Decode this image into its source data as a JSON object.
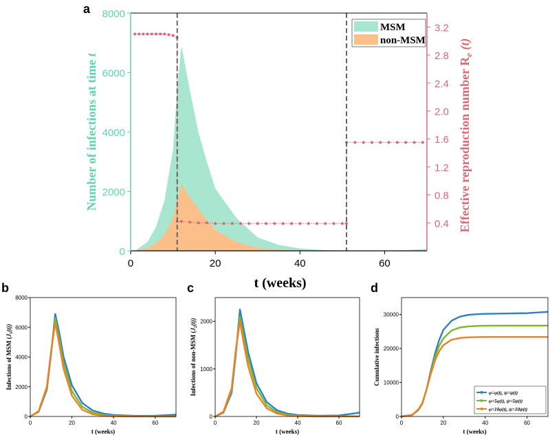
{
  "colors": {
    "msm": "#a8e6cf",
    "non_msm": "#fbc08a",
    "left_axis": "#5ed3b0",
    "right_axis": "#d96a78",
    "re_line": "#d9667a",
    "vline": "#666666",
    "blue": "#2f7ec4",
    "green": "#7ab82f",
    "orange": "#f07f22"
  },
  "chart_data": [
    {
      "panel": "a",
      "type": "area",
      "xlabel": "t (weeks)",
      "ylabel": "Number of infections at time t",
      "ylabel_italic": "t",
      "y2label": "Effective reproduction number R",
      "y2label_sub": "e",
      "y2label_suffix": "(t)",
      "xlim": [
        0,
        70
      ],
      "ylim": [
        0,
        8000
      ],
      "y2lim": [
        0,
        3.4
      ],
      "xticks": [
        0,
        20,
        40,
        60
      ],
      "yticks": [
        0,
        2000,
        4000,
        6000,
        8000
      ],
      "y2ticks": [
        0.4,
        0.8,
        1.2,
        1.6,
        2.0,
        2.4,
        2.8,
        3.2
      ],
      "vlines": [
        11,
        51
      ],
      "legend": [
        {
          "name": "MSM"
        },
        {
          "name": "non-MSM"
        }
      ],
      "series": [
        {
          "name": "MSM",
          "x": [
            1,
            4,
            6,
            8,
            10,
            11,
            12,
            14,
            16,
            18,
            20,
            25,
            30,
            35,
            40,
            45,
            50,
            55,
            60,
            65,
            70
          ],
          "values": [
            0,
            300,
            800,
            1700,
            3400,
            5400,
            6900,
            5400,
            4000,
            3000,
            2100,
            1100,
            450,
            200,
            80,
            30,
            10,
            5,
            5,
            20,
            60
          ]
        },
        {
          "name": "non-MSM",
          "x": [
            1,
            4,
            6,
            8,
            10,
            11,
            12,
            14,
            16,
            18,
            20,
            25,
            30,
            35,
            40,
            45,
            50,
            55,
            60,
            65,
            70
          ],
          "values": [
            0,
            100,
            250,
            550,
            1100,
            1700,
            2250,
            1800,
            1400,
            1050,
            700,
            300,
            100,
            40,
            15,
            5,
            2,
            1,
            1,
            5,
            15
          ]
        },
        {
          "name": "Re(t)",
          "x": [
            1,
            2,
            3,
            4,
            5,
            6,
            7,
            8,
            9,
            10,
            11,
            11,
            12,
            14,
            16,
            18,
            20,
            22,
            24,
            26,
            28,
            30,
            32,
            34,
            36,
            38,
            40,
            42,
            44,
            46,
            48,
            50,
            51,
            51,
            53,
            55,
            57,
            59,
            61,
            63,
            65,
            67,
            69
          ],
          "values": [
            3.1,
            3.1,
            3.1,
            3.1,
            3.1,
            3.1,
            3.1,
            3.1,
            3.09,
            3.08,
            3.05,
            0.42,
            0.42,
            0.41,
            0.4,
            0.4,
            0.39,
            0.39,
            0.39,
            0.39,
            0.39,
            0.39,
            0.39,
            0.39,
            0.39,
            0.39,
            0.39,
            0.39,
            0.39,
            0.39,
            0.39,
            0.39,
            0.39,
            1.55,
            1.55,
            1.55,
            1.55,
            1.55,
            1.55,
            1.55,
            1.55,
            1.55,
            1.55
          ]
        }
      ]
    },
    {
      "panel": "b",
      "type": "line",
      "xlabel": "t (weeks)",
      "ylabel": "Infections of MSM (J1(t))",
      "xlim": [
        0,
        70
      ],
      "ylim": [
        0,
        8000
      ],
      "xticks": [
        0,
        20,
        40,
        60
      ],
      "yticks": [
        0,
        2000,
        4000,
        6000,
        8000
      ],
      "x": [
        0,
        4,
        8,
        10,
        12,
        14,
        16,
        20,
        25,
        30,
        35,
        40,
        50,
        60,
        70
      ],
      "series": [
        {
          "name": "blue",
          "values": [
            0,
            300,
            1800,
            4200,
            6900,
            5600,
            4000,
            2100,
            900,
            400,
            200,
            100,
            40,
            50,
            120
          ]
        },
        {
          "name": "green",
          "values": [
            0,
            320,
            1900,
            4300,
            6600,
            5200,
            3600,
            1700,
            650,
            250,
            110,
            50,
            15,
            10,
            15
          ]
        },
        {
          "name": "orange",
          "values": [
            0,
            350,
            2000,
            4400,
            6300,
            4800,
            3200,
            1400,
            450,
            150,
            50,
            20,
            5,
            2,
            2
          ]
        }
      ]
    },
    {
      "panel": "c",
      "type": "line",
      "xlabel": "t (weeks)",
      "ylabel": "Infections of non-MSM (J2(t))",
      "xlim": [
        0,
        70
      ],
      "ylim": [
        0,
        2500
      ],
      "xticks": [
        0,
        20,
        40,
        60
      ],
      "yticks": [
        0,
        1000,
        2000
      ],
      "x": [
        0,
        4,
        8,
        10,
        12,
        14,
        16,
        20,
        25,
        30,
        35,
        40,
        50,
        60,
        70
      ],
      "series": [
        {
          "name": "blue",
          "values": [
            0,
            80,
            500,
            1300,
            2250,
            1800,
            1350,
            700,
            300,
            130,
            60,
            30,
            15,
            20,
            80
          ]
        },
        {
          "name": "green",
          "values": [
            0,
            90,
            550,
            1350,
            2100,
            1650,
            1200,
            600,
            230,
            90,
            35,
            15,
            5,
            3,
            5
          ]
        },
        {
          "name": "orange",
          "values": [
            0,
            100,
            600,
            1400,
            2000,
            1500,
            1050,
            480,
            170,
            60,
            20,
            8,
            2,
            1,
            1
          ]
        }
      ]
    },
    {
      "panel": "d",
      "type": "line",
      "xlabel": "t (weeks)",
      "ylabel": "Cumulative infections",
      "xlim": [
        0,
        70
      ],
      "ylim": [
        0,
        35000
      ],
      "xticks": [
        0,
        20,
        40,
        60
      ],
      "yticks": [
        0,
        10000,
        20000,
        30000
      ],
      "x": [
        0,
        5,
        8,
        10,
        12,
        14,
        16,
        18,
        20,
        24,
        28,
        32,
        36,
        40,
        50,
        60,
        70
      ],
      "series": [
        {
          "name": "blue",
          "values": [
            0,
            400,
            1800,
            3800,
            8000,
            13500,
            18500,
            22500,
            25500,
            28200,
            29400,
            29900,
            30100,
            30200,
            30300,
            30400,
            30800
          ]
        },
        {
          "name": "green",
          "values": [
            0,
            420,
            1900,
            3900,
            8000,
            13000,
            17500,
            20800,
            23000,
            25300,
            26200,
            26500,
            26650,
            26700,
            26750,
            26750,
            26750
          ]
        },
        {
          "name": "orange",
          "values": [
            0,
            450,
            2000,
            4000,
            8000,
            12500,
            16400,
            19200,
            21000,
            22600,
            23100,
            23300,
            23350,
            23400,
            23400,
            23400,
            23400
          ]
        }
      ],
      "legend": [
        {
          "name": "blue",
          "label": "φ=φ(t), ψ=ψ(t)"
        },
        {
          "name": "green",
          "label": "φ=5φ(t), ψ=5ψ(t)"
        },
        {
          "name": "orange",
          "label": "φ=10φ(t), ψ=10ψ(t)"
        }
      ]
    }
  ],
  "panel_letters": [
    "a",
    "b",
    "c",
    "d"
  ]
}
